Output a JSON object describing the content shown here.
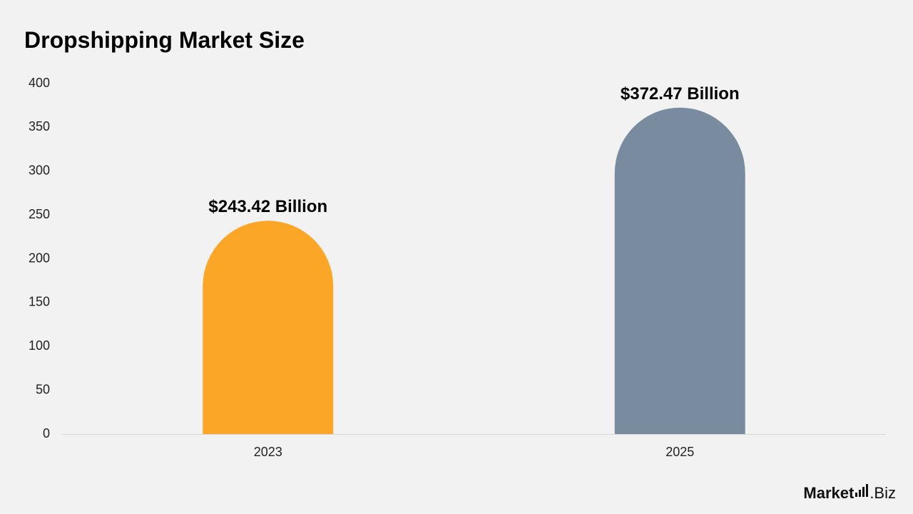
{
  "chart_data": {
    "type": "bar",
    "title": "Dropshipping Market Size",
    "categories": [
      "2023",
      "2025"
    ],
    "values": [
      243.42,
      372.47
    ],
    "data_labels": [
      "$243.42 Billion",
      "$372.47 Billion"
    ],
    "colors": [
      "#fca628",
      "#788b9f"
    ],
    "ylim": [
      0,
      400
    ],
    "yticks": [
      0,
      50,
      100,
      150,
      200,
      250,
      300,
      350,
      400
    ],
    "xlabel": "",
    "ylabel": "",
    "grid": false,
    "legend": "none"
  },
  "brand": {
    "name": "Market",
    "suffix": ".Biz"
  }
}
